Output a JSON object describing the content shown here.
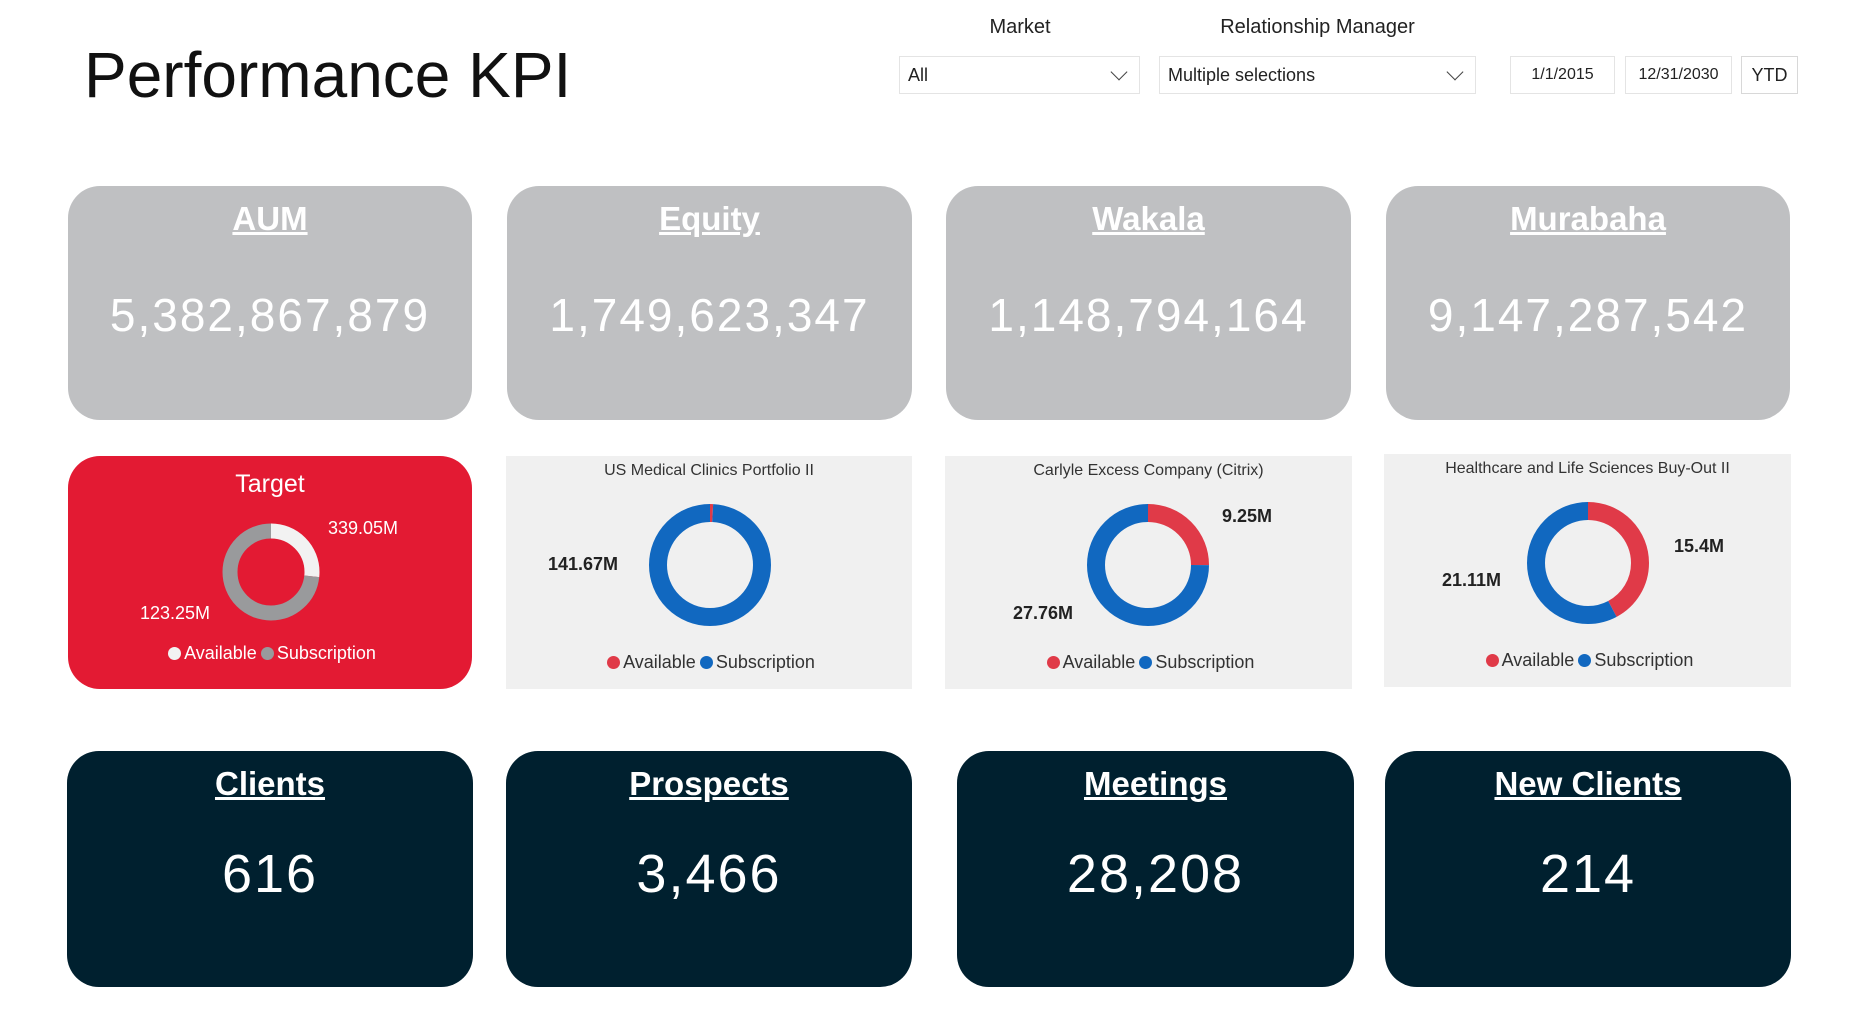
{
  "header": {
    "title": "Performance KPI"
  },
  "filters": {
    "market_label": "Market",
    "market_value": "All",
    "rm_label": "Relationship Manager",
    "rm_value": "Multiple selections",
    "date_start": "1/1/2015",
    "date_end": "12/31/2030",
    "ytd_label": "YTD"
  },
  "kpis_top": [
    {
      "label": "AUM",
      "value": "5,382,867,879"
    },
    {
      "label": "Equity",
      "value": "1,749,623,347"
    },
    {
      "label": "Wakala",
      "value": "1,148,794,164"
    },
    {
      "label": "Murabaha",
      "value": "9,147,287,542"
    }
  ],
  "kpis_bottom": [
    {
      "label": "Clients",
      "value": "616"
    },
    {
      "label": "Prospects",
      "value": "3,466"
    },
    {
      "label": "Meetings",
      "value": "28,208"
    },
    {
      "label": "New Clients",
      "value": "214"
    }
  ],
  "chart_data": [
    {
      "type": "pie",
      "title": "Target",
      "legend": [
        "Available",
        "Subscription"
      ],
      "colors": [
        "#f2f2f2",
        "#999a9c"
      ],
      "values": [
        123.25,
        339.05
      ],
      "labels": [
        "123.25M",
        "339.05M"
      ]
    },
    {
      "type": "pie",
      "title": "US Medical Clinics Portfolio II",
      "legend": [
        "Available",
        "Subscription"
      ],
      "colors": [
        "#e03a48",
        "#1168c0"
      ],
      "values": [
        1.2,
        141.67
      ],
      "labels": [
        "",
        "141.67M"
      ]
    },
    {
      "type": "pie",
      "title": "Carlyle Excess Company (Citrix)",
      "legend": [
        "Available",
        "Subscription"
      ],
      "colors": [
        "#e03a48",
        "#1168c0"
      ],
      "values": [
        9.25,
        27.76
      ],
      "labels": [
        "9.25M",
        "27.76M"
      ]
    },
    {
      "type": "pie",
      "title": "Healthcare and Life Sciences Buy-Out II",
      "legend": [
        "Available",
        "Subscription"
      ],
      "colors": [
        "#e03a48",
        "#1168c0"
      ],
      "values": [
        15.4,
        21.11
      ],
      "labels": [
        "15.4M",
        "21.11M"
      ]
    }
  ]
}
